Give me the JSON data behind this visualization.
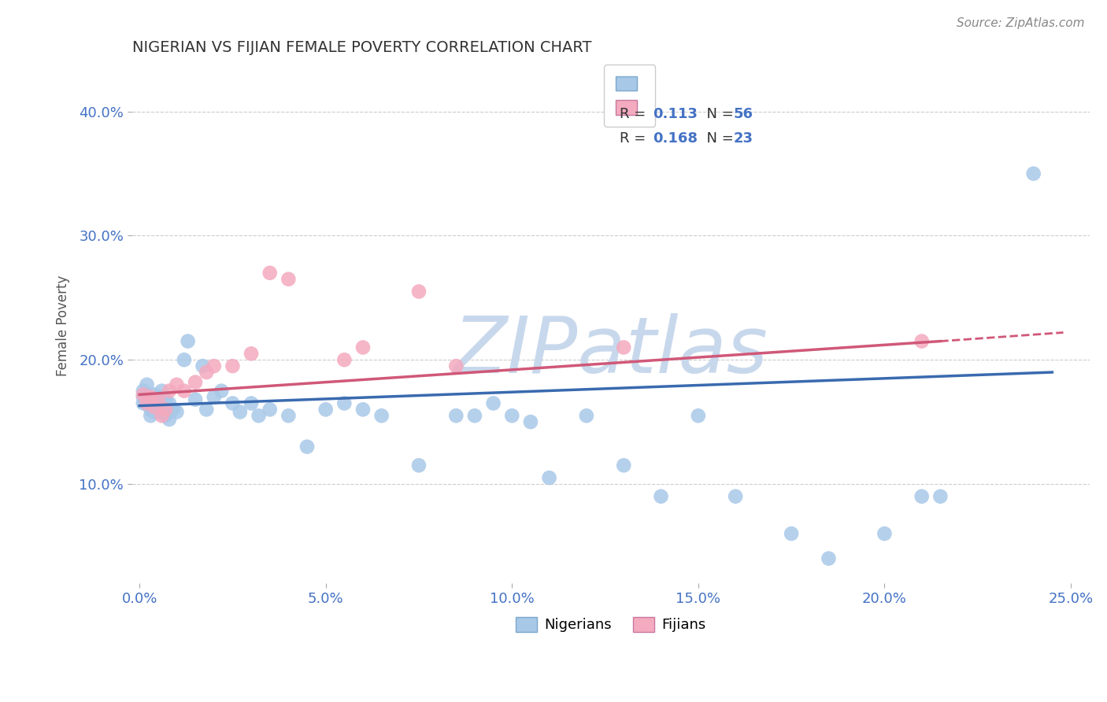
{
  "title": "NIGERIAN VS FIJIAN FEMALE POVERTY CORRELATION CHART",
  "source": "Source: ZipAtlas.com",
  "ylabel": "Female Poverty",
  "xlim": [
    -0.002,
    0.255
  ],
  "ylim": [
    0.02,
    0.435
  ],
  "xticks": [
    0.0,
    0.05,
    0.1,
    0.15,
    0.2,
    0.25
  ],
  "yticks": [
    0.1,
    0.2,
    0.3,
    0.4
  ],
  "xtick_labels": [
    "0.0%",
    "5.0%",
    "10.0%",
    "15.0%",
    "20.0%",
    "25.0%"
  ],
  "ytick_labels": [
    "10.0%",
    "20.0%",
    "30.0%",
    "40.0%"
  ],
  "nigerian_x": [
    0.001,
    0.001,
    0.001,
    0.002,
    0.002,
    0.003,
    0.003,
    0.003,
    0.004,
    0.004,
    0.005,
    0.005,
    0.006,
    0.006,
    0.007,
    0.007,
    0.008,
    0.008,
    0.009,
    0.01,
    0.012,
    0.013,
    0.015,
    0.017,
    0.018,
    0.02,
    0.022,
    0.025,
    0.027,
    0.03,
    0.032,
    0.035,
    0.04,
    0.045,
    0.05,
    0.055,
    0.06,
    0.065,
    0.075,
    0.085,
    0.09,
    0.095,
    0.1,
    0.105,
    0.11,
    0.12,
    0.13,
    0.14,
    0.15,
    0.16,
    0.175,
    0.185,
    0.2,
    0.21,
    0.215,
    0.24
  ],
  "nigerian_y": [
    0.175,
    0.17,
    0.165,
    0.18,
    0.165,
    0.16,
    0.165,
    0.155,
    0.172,
    0.158,
    0.17,
    0.158,
    0.175,
    0.162,
    0.168,
    0.155,
    0.165,
    0.152,
    0.16,
    0.158,
    0.2,
    0.215,
    0.168,
    0.195,
    0.16,
    0.17,
    0.175,
    0.165,
    0.158,
    0.165,
    0.155,
    0.16,
    0.155,
    0.13,
    0.16,
    0.165,
    0.16,
    0.155,
    0.115,
    0.155,
    0.155,
    0.165,
    0.155,
    0.15,
    0.105,
    0.155,
    0.115,
    0.09,
    0.155,
    0.09,
    0.06,
    0.04,
    0.06,
    0.09,
    0.09,
    0.35
  ],
  "fijian_x": [
    0.001,
    0.002,
    0.003,
    0.004,
    0.005,
    0.006,
    0.007,
    0.008,
    0.01,
    0.012,
    0.015,
    0.018,
    0.02,
    0.025,
    0.03,
    0.035,
    0.04,
    0.055,
    0.06,
    0.075,
    0.085,
    0.13,
    0.21
  ],
  "fijian_y": [
    0.172,
    0.165,
    0.17,
    0.162,
    0.168,
    0.155,
    0.16,
    0.175,
    0.18,
    0.175,
    0.182,
    0.19,
    0.195,
    0.195,
    0.205,
    0.27,
    0.265,
    0.2,
    0.21,
    0.255,
    0.195,
    0.21,
    0.215
  ],
  "nigerian_R": 0.113,
  "nigerian_N": 56,
  "fijian_R": 0.168,
  "fijian_N": 23,
  "nigerian_color": "#a8c8e8",
  "fijian_color": "#f4aabf",
  "nigerian_line_color": "#3a6aaf",
  "fijian_line_color": "#d05878",
  "background_color": "#ffffff",
  "grid_color": "#cccccc",
  "watermark_text": "ZIPatlas",
  "watermark_color": "#c8d8ec"
}
